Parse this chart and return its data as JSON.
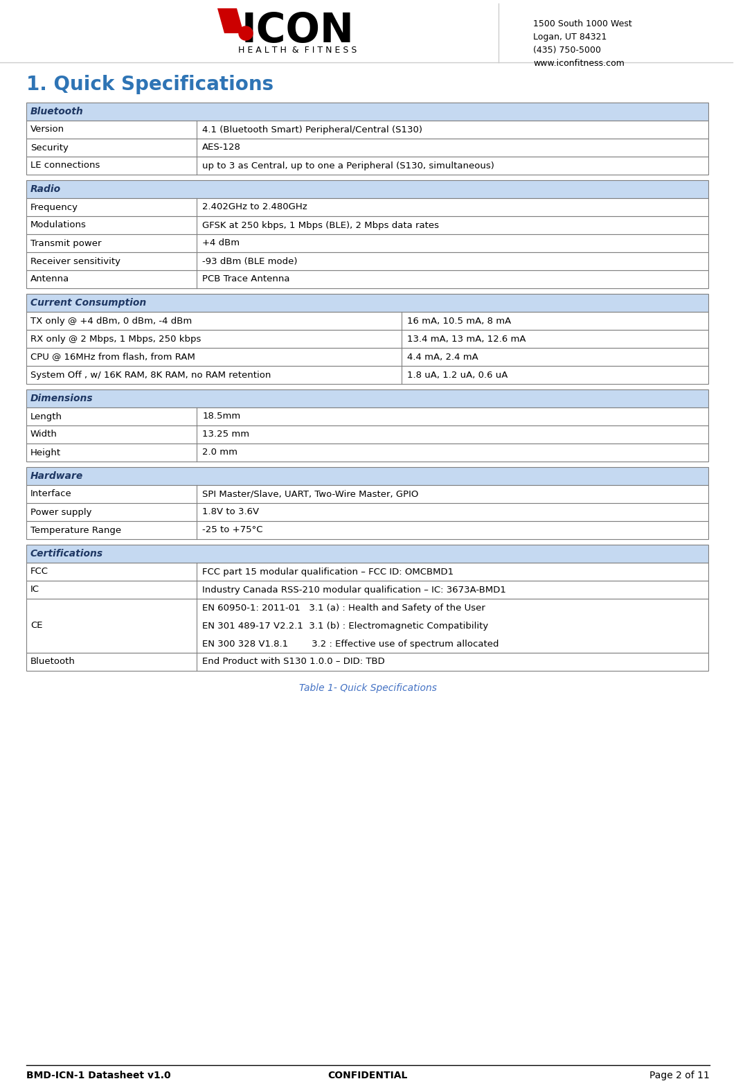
{
  "title": "1. Quick Specifications",
  "header_bg": "#c5d9f1",
  "row_bg_white": "#ffffff",
  "row_bg_alt": "#f2f2f2",
  "border_color": "#7f7f7f",
  "table_caption": "Table 1- Quick Specifications",
  "table_caption_color": "#4472c4",
  "footer_left": "BMD-ICN-1 Datasheet v1.0",
  "footer_center": "CONFIDENTIAL",
  "footer_right": "Page 2 of 11",
  "header_text_color": "#1f3864",
  "body_text_color": "#000000",
  "sections": [
    {
      "header": "Bluetooth",
      "rows": [
        [
          "Version",
          "4.1 (Bluetooth Smart) Peripheral/Central (S130)",
          ""
        ],
        [
          "Security",
          "AES-128",
          ""
        ],
        [
          "LE connections",
          "up to 3 as Central, up to one a Peripheral (S130, simultaneous)",
          ""
        ]
      ],
      "three_col": false
    },
    {
      "header": "Radio",
      "rows": [
        [
          "Frequency",
          "2.402GHz to 2.480GHz",
          ""
        ],
        [
          "Modulations",
          "GFSK at 250 kbps, 1 Mbps (BLE), 2 Mbps data rates",
          ""
        ],
        [
          "Transmit power",
          "+4 dBm",
          ""
        ],
        [
          "Receiver sensitivity",
          "-93 dBm (BLE mode)",
          ""
        ],
        [
          "Antenna",
          "PCB Trace Antenna",
          ""
        ]
      ],
      "three_col": false
    },
    {
      "header": "Current Consumption",
      "rows": [
        [
          "TX only @ +4 dBm, 0 dBm, -4 dBm",
          "16 mA, 10.5 mA, 8 mA",
          ""
        ],
        [
          "RX only @ 2 Mbps, 1 Mbps, 250 kbps",
          "13.4 mA, 13 mA, 12.6 mA",
          ""
        ],
        [
          "CPU @ 16MHz from flash, from RAM",
          "4.4 mA, 2.4 mA",
          ""
        ],
        [
          "System Off , w/ 16K RAM, 8K RAM, no RAM retention",
          "1.8 uA, 1.2 uA, 0.6 uA",
          ""
        ]
      ],
      "three_col": true
    },
    {
      "header": "Dimensions",
      "rows": [
        [
          "Length",
          "18.5mm",
          ""
        ],
        [
          "Width",
          "13.25 mm",
          ""
        ],
        [
          "Height",
          "2.0 mm",
          ""
        ]
      ],
      "three_col": false
    },
    {
      "header": "Hardware",
      "rows": [
        [
          "Interface",
          "SPI Master/Slave, UART, Two-Wire Master, GPIO",
          ""
        ],
        [
          "Power supply",
          "1.8V to 3.6V",
          ""
        ],
        [
          "Temperature Range",
          "-25 to +75°C",
          ""
        ]
      ],
      "three_col": false
    },
    {
      "header": "Certifications",
      "rows": [
        [
          "FCC",
          "FCC part 15 modular qualification – FCC ID: OMCBMD1",
          ""
        ],
        [
          "IC",
          "Industry Canada RSS-210 modular qualification – IC: 3673A-BMD1",
          ""
        ],
        [
          "CE",
          "EN 60950-1: 2011-01   3.1 (a) : Health and Safety of the User\nEN 301 489-17 V2.2.1  3.1 (b) : Electromagnetic Compatibility\nEN 300 328 V1.8.1        3.2 : Effective use of spectrum allocated",
          ""
        ],
        [
          "Bluetooth",
          "End Product with S130 1.0.0 – DID: TBD",
          ""
        ]
      ],
      "three_col": false
    }
  ],
  "logo_address": "1500 South 1000 West\nLogan, UT 84321\n(435) 750-5000\nwww.iconfitness.com"
}
